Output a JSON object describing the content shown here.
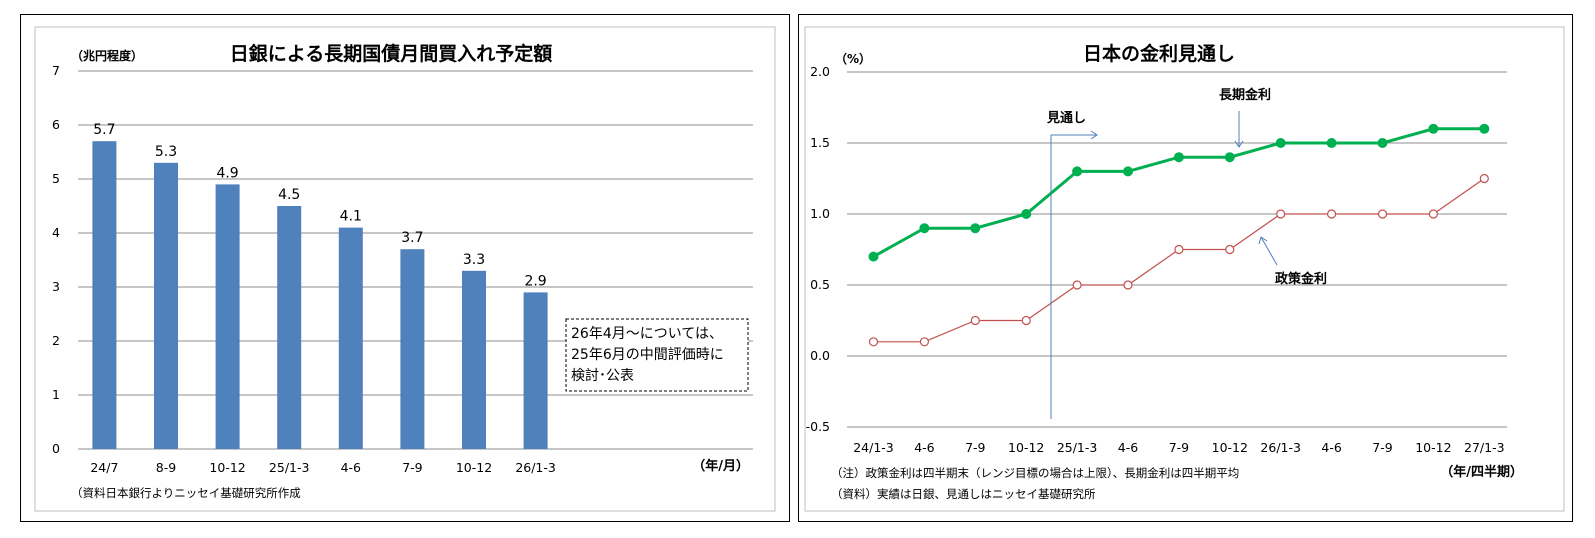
{
  "left": {
    "chart_data": {
      "type": "bar",
      "title": "日銀による長期国債月間買入れ予定額",
      "ylabel": "（兆円程度）",
      "xlabel": "（年/月）",
      "categories": [
        "24/7",
        "8-9",
        "10-12",
        "25/1-3",
        "4-6",
        "7-9",
        "10-12",
        "26/1-3"
      ],
      "values": [
        5.7,
        5.3,
        4.9,
        4.5,
        4.1,
        3.7,
        3.3,
        2.9
      ],
      "value_labels": [
        "5.7",
        "5.3",
        "4.9",
        "4.5",
        "4.1",
        "3.7",
        "3.3",
        "2.9"
      ],
      "ylim": [
        0,
        7
      ],
      "yticks": [
        "0",
        "1",
        "2",
        "3",
        "4",
        "5",
        "6",
        "7"
      ],
      "bar_color": "#4f81bd",
      "grid": true,
      "annotation_lines": [
        "26年4月～については、",
        "25年6月の中間評価時に",
        "検討･公表"
      ],
      "source": "（資料日本銀行よりニッセイ基礎研究所作成"
    }
  },
  "right": {
    "chart_data": {
      "type": "line",
      "title": "日本の金利見通し",
      "ylabel": "（%）",
      "xlabel": "（年/四半期）",
      "categories": [
        "24/1-3",
        "4-6",
        "7-9",
        "10-12",
        "25/1-3",
        "4-6",
        "7-9",
        "10-12",
        "26/1-3",
        "4-6",
        "7-9",
        "10-12",
        "27/1-3"
      ],
      "ylim": [
        -0.5,
        2.0
      ],
      "yticks": [
        "-0.5",
        "0.0",
        "0.5",
        "1.0",
        "1.5",
        "2.0"
      ],
      "grid": true,
      "series": [
        {
          "name": "長期金利",
          "color": "#00b050",
          "values": [
            0.7,
            0.9,
            0.9,
            1.0,
            1.3,
            1.3,
            1.4,
            1.4,
            1.5,
            1.5,
            1.5,
            1.6,
            1.6
          ]
        },
        {
          "name": "政策金利",
          "color": "#c0504d",
          "values": [
            0.1,
            0.1,
            0.25,
            0.25,
            0.5,
            0.5,
            0.75,
            0.75,
            1.0,
            1.0,
            1.0,
            1.0,
            1.25
          ]
        }
      ],
      "forecast_label": "見通し",
      "note1": "（注）政策金利は四半期末（レンジ目標の場合は上限）、長期金利は四半期平均",
      "note2": "（資料）実績は日銀、見通しはニッセイ基礎研究所"
    }
  }
}
